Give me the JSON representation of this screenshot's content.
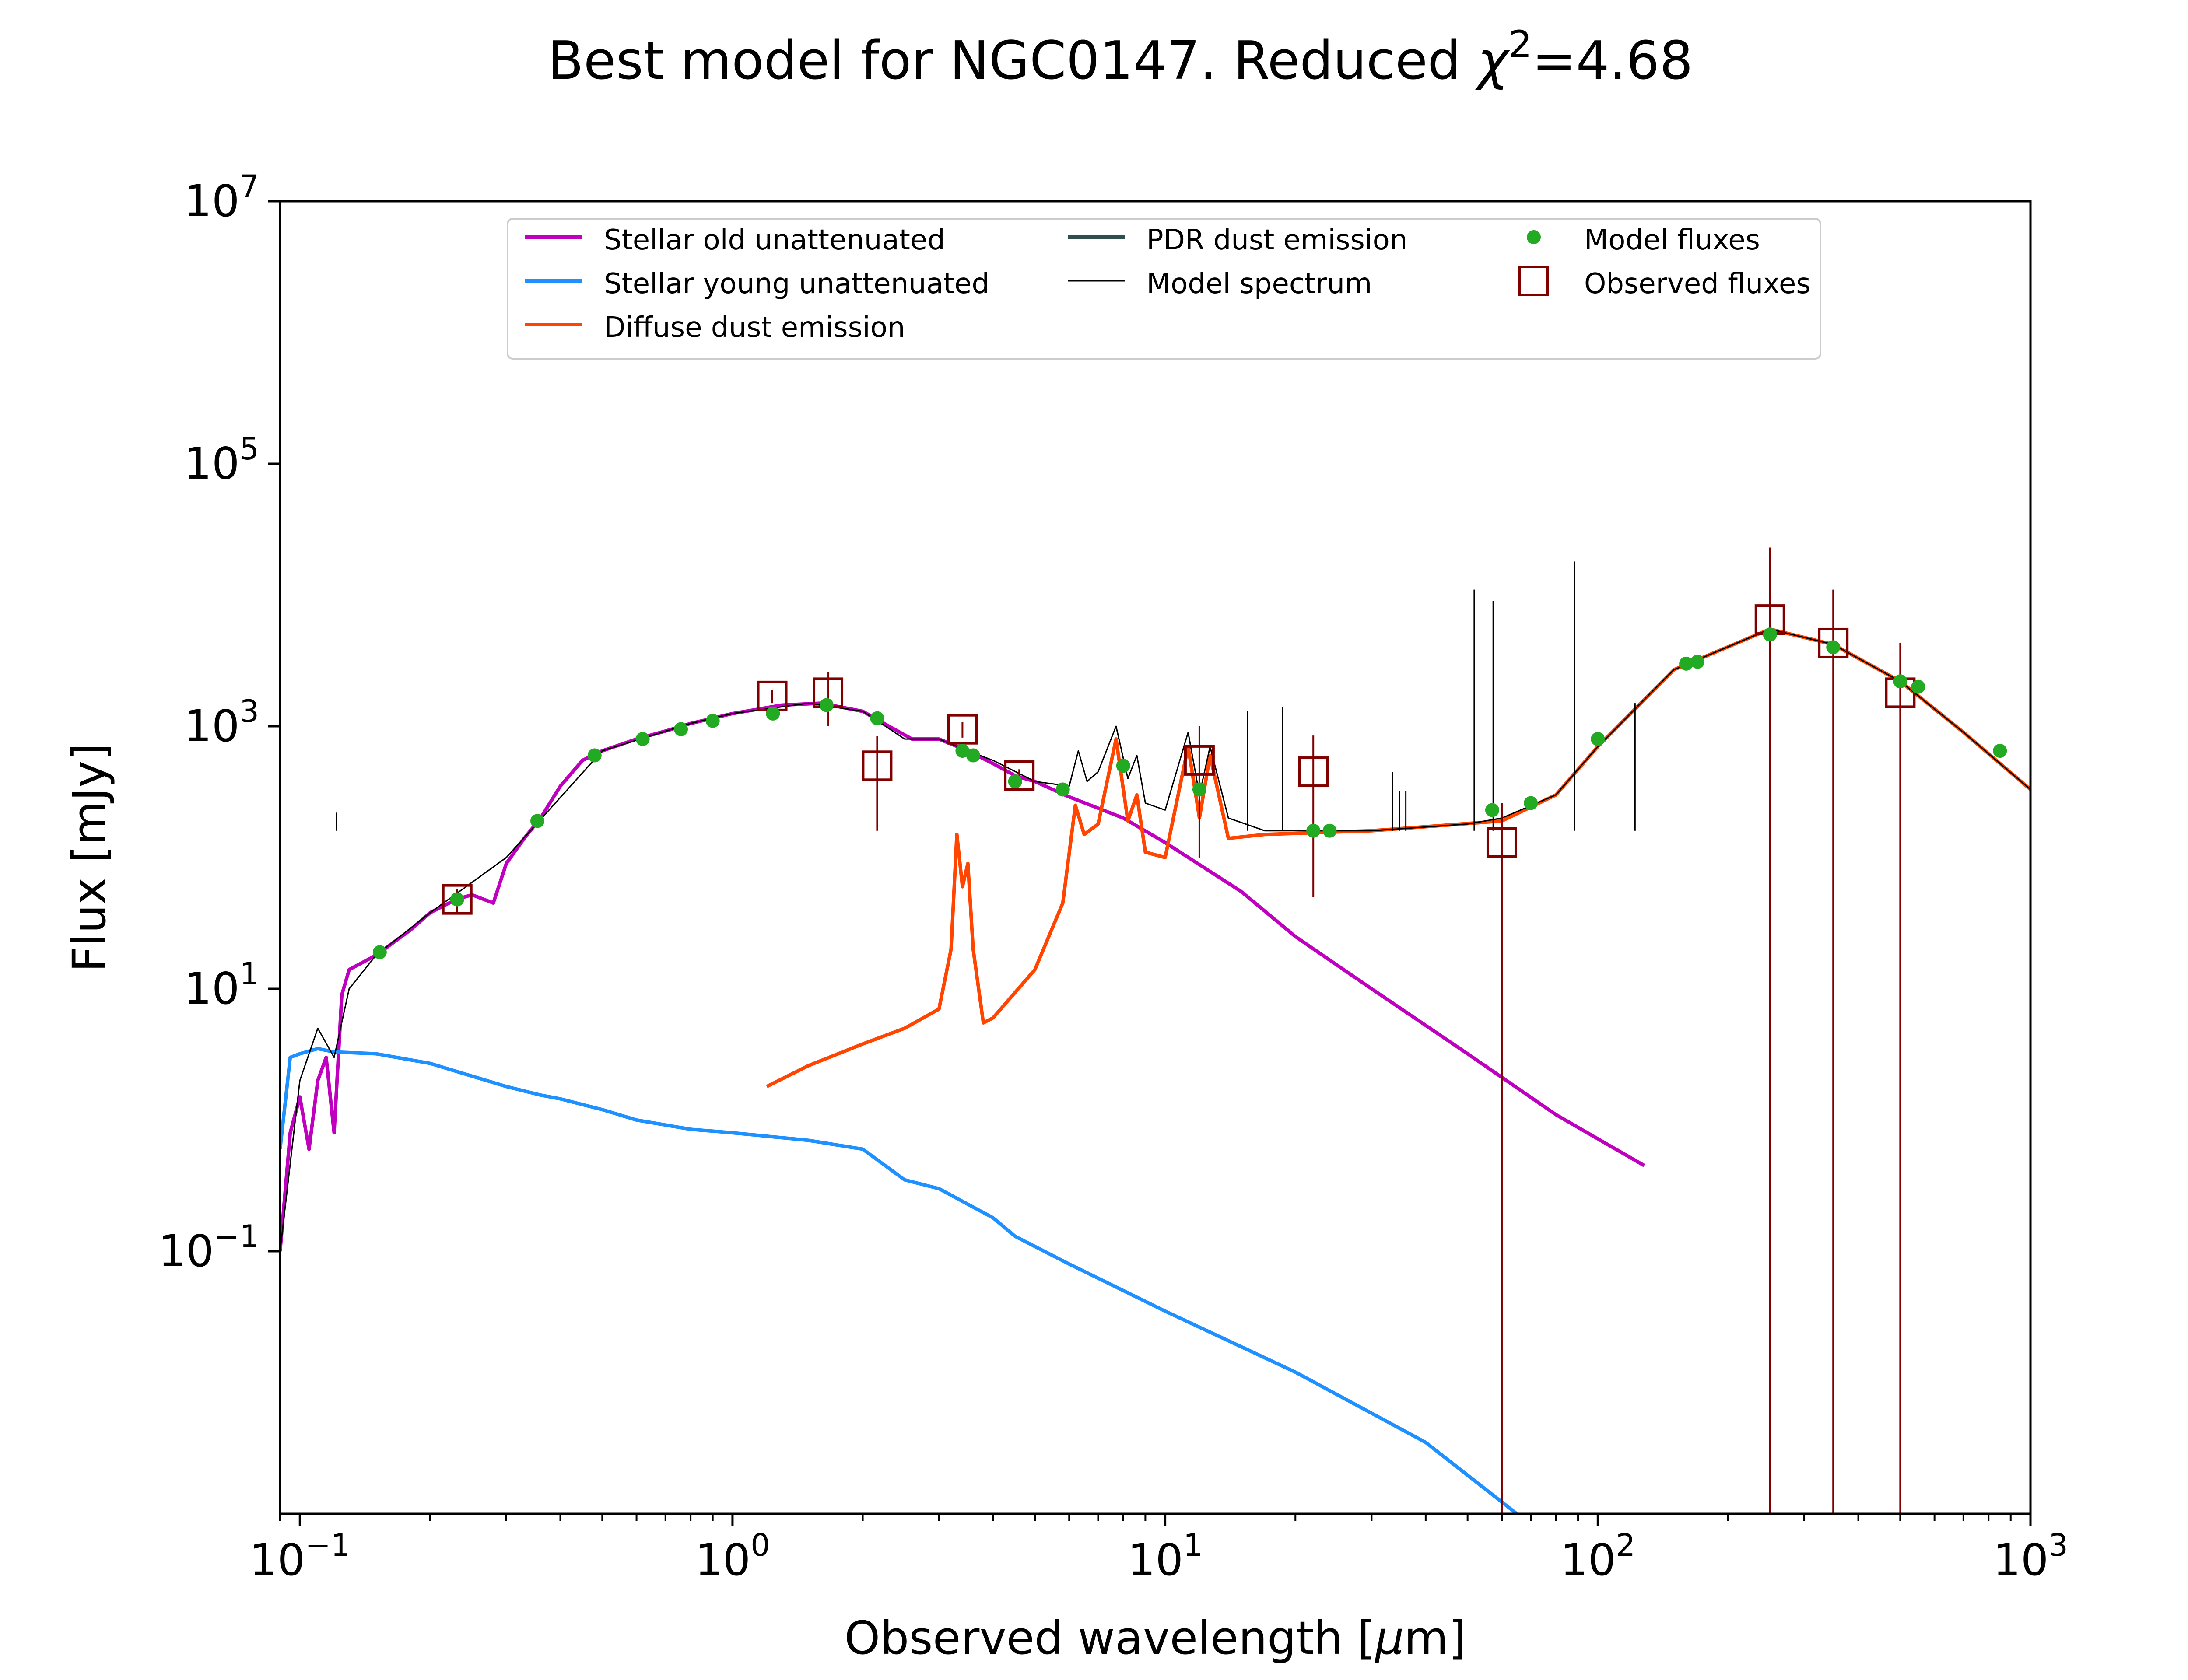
{
  "chart_data": {
    "type": "line",
    "title": {
      "prefix": "Best model for NGC0147. Reduced ",
      "chi": "χ",
      "sup": "2",
      "suffix": "=4.68"
    },
    "xlabel": {
      "prefix": "Observed wavelength [",
      "mu": "μ",
      "suffix": "m]"
    },
    "ylabel": "Flux [mJy]",
    "xscale": "log",
    "yscale": "log",
    "xlim": [
      0.09,
      1000
    ],
    "ylim": [
      0.001,
      10000000
    ],
    "xticks": [
      {
        "value": 0.1,
        "base": "10",
        "exp": "−1"
      },
      {
        "value": 1,
        "base": "10",
        "exp": "0"
      },
      {
        "value": 10,
        "base": "10",
        "exp": "1"
      },
      {
        "value": 100,
        "base": "10",
        "exp": "2"
      },
      {
        "value": 1000,
        "base": "10",
        "exp": "3"
      }
    ],
    "yticks": [
      {
        "value": 0.1,
        "base": "10",
        "exp": "−1"
      },
      {
        "value": 10,
        "base": "10",
        "exp": "1"
      },
      {
        "value": 1000,
        "base": "10",
        "exp": "3"
      },
      {
        "value": 100000,
        "base": "10",
        "exp": "5"
      },
      {
        "value": 10000000,
        "base": "10",
        "exp": "7"
      }
    ],
    "legend": {
      "position": "top-center",
      "entries": [
        {
          "label": "Stellar old unattenuated",
          "color": "#bf00bf",
          "marker": "line"
        },
        {
          "label": "Stellar young unattenuated",
          "color": "#1e90ff",
          "marker": "line"
        },
        {
          "label": "Diffuse dust emission",
          "color": "#ff4500",
          "marker": "line"
        },
        {
          "label": "PDR dust emission",
          "color": "#2f4f4f",
          "marker": "line"
        },
        {
          "label": "Model spectrum",
          "color": "#000000",
          "marker": "thinline"
        },
        {
          "label": "Model fluxes",
          "color": "#22aa22",
          "marker": "dot"
        },
        {
          "label": "Observed fluxes",
          "color": "#800000",
          "marker": "square"
        }
      ]
    },
    "series": [
      {
        "name": "Stellar old unattenuated",
        "color": "#bf00bf",
        "x": [
          0.09,
          0.095,
          0.1,
          0.105,
          0.11,
          0.115,
          0.12,
          0.125,
          0.13,
          0.15,
          0.18,
          0.2,
          0.23,
          0.25,
          0.28,
          0.3,
          0.33,
          0.36,
          0.4,
          0.45,
          0.5,
          0.6,
          0.7,
          0.8,
          1.0,
          1.3,
          1.6,
          2.0,
          2.3,
          2.6,
          3.0,
          3.5,
          4.0,
          4.5,
          5.0,
          6.0,
          8.0,
          10,
          15,
          20,
          30,
          50,
          80,
          128
        ],
        "y": [
          0.1,
          0.8,
          1.5,
          0.6,
          2.0,
          3.0,
          0.8,
          9,
          14,
          18,
          28,
          38,
          48,
          52,
          45,
          90,
          140,
          200,
          350,
          550,
          650,
          800,
          920,
          1050,
          1250,
          1450,
          1500,
          1300,
          1000,
          800,
          800,
          650,
          520,
          420,
          380,
          290,
          200,
          130,
          55,
          25,
          10,
          3.2,
          1.1,
          0.45
        ]
      },
      {
        "name": "Stellar young unattenuated",
        "color": "#1e90ff",
        "x": [
          0.09,
          0.095,
          0.1,
          0.11,
          0.12,
          0.15,
          0.2,
          0.3,
          0.36,
          0.4,
          0.5,
          0.6,
          0.8,
          1.0,
          1.5,
          2.0,
          2.5,
          3.0,
          4.0,
          4.5,
          6.0,
          10,
          20,
          40,
          65
        ],
        "y": [
          0.6,
          3.0,
          3.2,
          3.5,
          3.3,
          3.2,
          2.7,
          1.8,
          1.55,
          1.45,
          1.2,
          1.0,
          0.85,
          0.8,
          0.7,
          0.6,
          0.35,
          0.3,
          0.18,
          0.13,
          0.08,
          0.035,
          0.012,
          0.0035,
          0.001
        ]
      },
      {
        "name": "Diffuse dust emission",
        "color": "#ff4500",
        "x": [
          1.2,
          1.5,
          2.0,
          2.5,
          3.0,
          3.2,
          3.3,
          3.4,
          3.5,
          3.6,
          3.8,
          4.0,
          5.0,
          5.8,
          6.2,
          6.5,
          7.0,
          7.7,
          8.2,
          8.6,
          9.0,
          10,
          11.3,
          12,
          12.7,
          14,
          17,
          30,
          60,
          80,
          100,
          150,
          250,
          350,
          500,
          700,
          1000
        ],
        "y": [
          1.8,
          2.6,
          3.8,
          5.0,
          7.0,
          20,
          150,
          60,
          90,
          20,
          5.5,
          6.0,
          14,
          45,
          250,
          150,
          180,
          800,
          190,
          300,
          110,
          100,
          700,
          200,
          600,
          140,
          150,
          160,
          190,
          300,
          700,
          2700,
          5500,
          4200,
          2200,
          900,
          330
        ]
      },
      {
        "name": "Model spectrum",
        "color": "#000000",
        "x": [
          0.09,
          0.1,
          0.11,
          0.12,
          0.13,
          0.15,
          0.2,
          0.3,
          0.5,
          0.8,
          1.0,
          1.5,
          2.0,
          2.5,
          3.0,
          3.5,
          4.0,
          5.0,
          6.0,
          6.3,
          6.6,
          7.0,
          7.7,
          8.2,
          8.6,
          9.0,
          10,
          11.3,
          12,
          12.7,
          14,
          17,
          30,
          50,
          60,
          80,
          100,
          150,
          250,
          350,
          500,
          700,
          1000
        ],
        "y": [
          0.1,
          2.0,
          5.0,
          3.0,
          10,
          18,
          38,
          100,
          650,
          1050,
          1250,
          1500,
          1300,
          800,
          800,
          650,
          550,
          380,
          350,
          650,
          380,
          450,
          1000,
          400,
          600,
          260,
          230,
          900,
          300,
          700,
          200,
          160,
          160,
          180,
          200,
          300,
          700,
          2700,
          5500,
          4200,
          2200,
          900,
          330
        ]
      }
    ],
    "emission_lines": [
      {
        "x": 0.1216,
        "peak": 220
      },
      {
        "x": 15.5,
        "peak": 1300
      },
      {
        "x": 18.7,
        "peak": 1400
      },
      {
        "x": 33.5,
        "peak": 450
      },
      {
        "x": 34.8,
        "peak": 320
      },
      {
        "x": 36.0,
        "peak": 320
      },
      {
        "x": 51.8,
        "peak": 11000
      },
      {
        "x": 57.3,
        "peak": 9000
      },
      {
        "x": 88.4,
        "peak": 18000
      },
      {
        "x": 121.9,
        "peak": 1500
      }
    ],
    "model_fluxes": {
      "name": "Model fluxes",
      "color": "#22aa22",
      "x": [
        0.153,
        0.231,
        0.354,
        0.48,
        0.62,
        0.76,
        0.9,
        1.24,
        1.65,
        2.16,
        3.4,
        3.6,
        4.5,
        5.8,
        8.0,
        12,
        22,
        24,
        57,
        70,
        100,
        160,
        170,
        250,
        350,
        500,
        550,
        850
      ],
      "y": [
        19,
        48,
        190,
        600,
        800,
        950,
        1100,
        1250,
        1450,
        1150,
        650,
        600,
        380,
        330,
        500,
        330,
        160,
        160,
        230,
        260,
        800,
        3000,
        3100,
        5000,
        4000,
        2200,
        2000,
        650
      ]
    },
    "observed_fluxes": {
      "name": "Observed fluxes",
      "color": "#800000",
      "points": [
        {
          "x": 0.231,
          "y": 48,
          "lo": 38,
          "hi": 58
        },
        {
          "x": 1.235,
          "y": 1700,
          "lo": 1500,
          "hi": 1900
        },
        {
          "x": 1.662,
          "y": 1800,
          "lo": 1000,
          "hi": 2600
        },
        {
          "x": 2.159,
          "y": 500,
          "lo": 160,
          "hi": 840
        },
        {
          "x": 3.4,
          "y": 950,
          "lo": 820,
          "hi": 1080
        },
        {
          "x": 4.6,
          "y": 420,
          "lo": 370,
          "hi": 470
        },
        {
          "x": 12.0,
          "y": 550,
          "lo": 100,
          "hi": 1000
        },
        {
          "x": 22.0,
          "y": 450,
          "lo": 50,
          "hi": 850
        },
        {
          "x": 60.0,
          "y": 130,
          "lo": 0.001,
          "hi": 260
        },
        {
          "x": 250,
          "y": 6500,
          "lo": 0.001,
          "hi": 23000
        },
        {
          "x": 350,
          "y": 4300,
          "lo": 0.001,
          "hi": 11000
        },
        {
          "x": 500,
          "y": 1800,
          "lo": 0.001,
          "hi": 4300
        }
      ]
    }
  }
}
